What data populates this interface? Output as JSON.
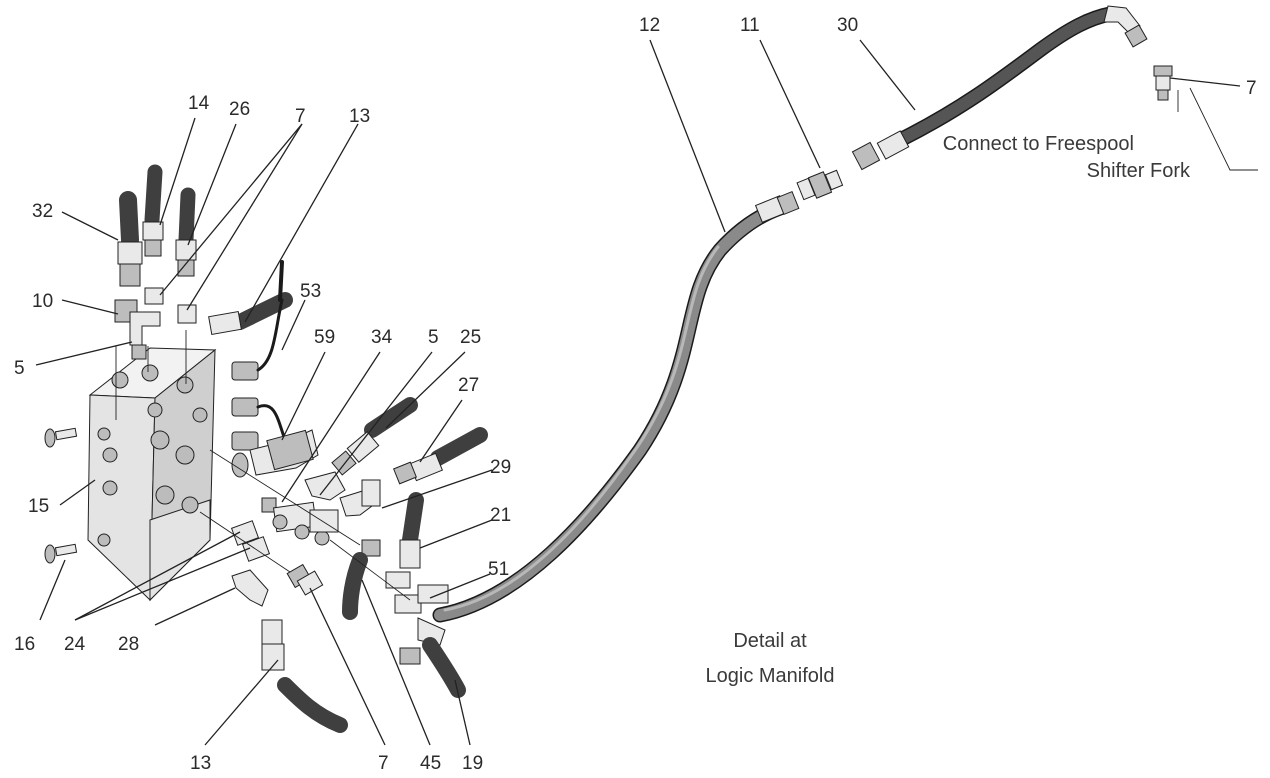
{
  "callouts": {
    "c12": "12",
    "c11": "11",
    "c30": "30",
    "c7a": "7",
    "c14": "14",
    "c26": "26",
    "c7b": "7",
    "c13a": "13",
    "c32": "32",
    "c53": "53",
    "c10": "10",
    "c5a": "5",
    "c59": "59",
    "c34": "34",
    "c5b": "5",
    "c25": "25",
    "c27": "27",
    "c29": "29",
    "c21": "21",
    "c51": "51",
    "c15": "15",
    "c16": "16",
    "c24": "24",
    "c28": "28",
    "c13b": "13",
    "c7c": "7",
    "c45": "45",
    "c19": "19"
  },
  "notes": {
    "connect_line1": "Connect to Freespool",
    "connect_line2": "Shifter Fork",
    "detail_line1": "Detail at",
    "detail_line2": "Logic Manifold"
  }
}
